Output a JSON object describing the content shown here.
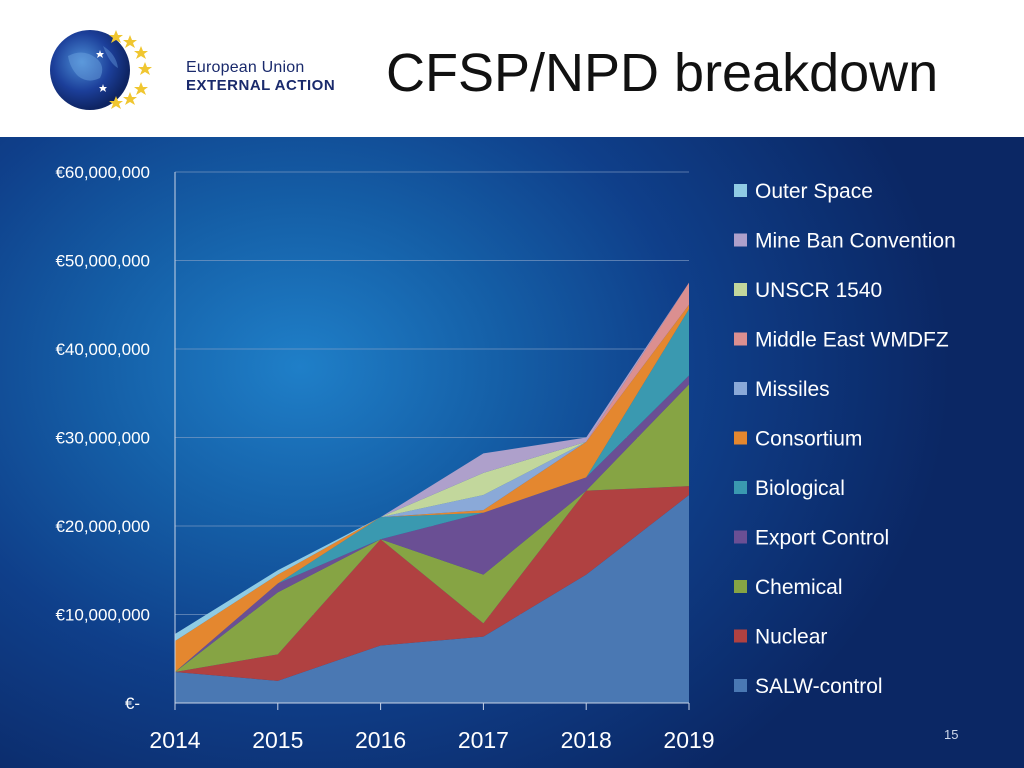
{
  "header": {
    "title": "CFSP/NPD breakdown",
    "logo_line1": "European Union",
    "logo_line2": "EXTERNAL ACTION"
  },
  "page_number": "15",
  "colors": {
    "SALW-control": "#4a78b3",
    "Nuclear": "#b04141",
    "Chemical": "#86a444",
    "Export Control": "#6a4f94",
    "Biological": "#3a99b0",
    "Consortium": "#e4872f",
    "Missiles": "#8aa9d8",
    "Middle East WMDFZ": "#db8f90",
    "UNSCR 1540": "#c2d79c",
    "Mine Ban Convention": "#aea0cb",
    "Outer Space": "#8fcbe4"
  },
  "chart_data": {
    "type": "area",
    "stacked": true,
    "categories": [
      "2014",
      "2015",
      "2016",
      "2017",
      "2018",
      "2019"
    ],
    "y_ticks": [
      "€-",
      "€10,000,000",
      "€20,000,000",
      "€30,000,000",
      "€40,000,000",
      "€50,000,000",
      "€60,000,000"
    ],
    "ylim": [
      0,
      60000000
    ],
    "grid": true,
    "legend_position": "right",
    "series": [
      {
        "name": "SALW-control",
        "values": [
          3500000,
          2500000,
          6500000,
          7500000,
          14500000,
          23500000
        ]
      },
      {
        "name": "Nuclear",
        "values": [
          0,
          3000000,
          12000000,
          1500000,
          9500000,
          1000000
        ]
      },
      {
        "name": "Chemical",
        "values": [
          0,
          7000000,
          0,
          5500000,
          0,
          11500000
        ]
      },
      {
        "name": "Export Control",
        "values": [
          0,
          1000000,
          0,
          7000000,
          1500000,
          1000000
        ]
      },
      {
        "name": "Biological",
        "values": [
          0,
          0,
          2500000,
          0,
          0,
          7500000
        ]
      },
      {
        "name": "Consortium",
        "values": [
          3500000,
          1000000,
          0,
          300000,
          4000000,
          500000
        ]
      },
      {
        "name": "Missiles",
        "values": [
          0,
          0,
          0,
          1700000,
          0,
          0
        ]
      },
      {
        "name": "Middle East WMDFZ",
        "values": [
          0,
          0,
          0,
          0,
          0,
          2500000
        ]
      },
      {
        "name": "UNSCR 1540",
        "values": [
          0,
          0,
          0,
          2500000,
          0,
          0
        ]
      },
      {
        "name": "Mine Ban Convention",
        "values": [
          0,
          0,
          0,
          2200000,
          500000,
          0
        ]
      },
      {
        "name": "Outer Space",
        "values": [
          800000,
          500000,
          0,
          0,
          0,
          0
        ]
      }
    ]
  }
}
